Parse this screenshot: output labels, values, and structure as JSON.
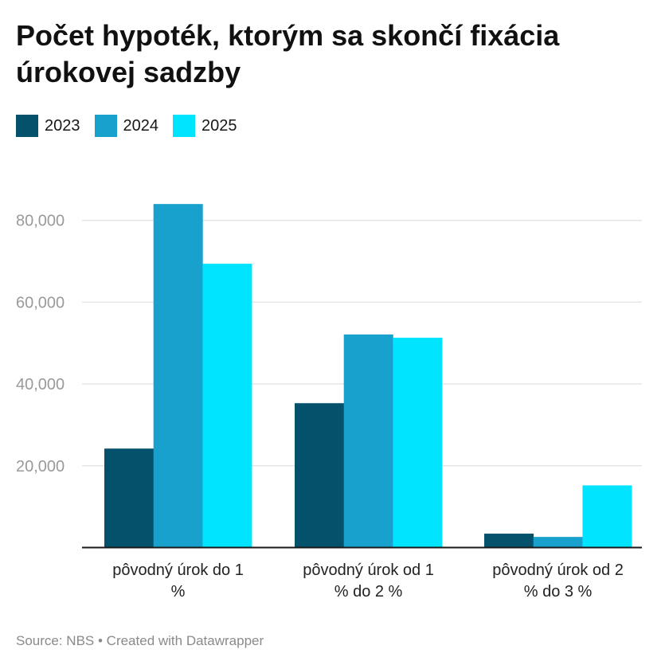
{
  "chart_data": {
    "type": "bar",
    "title": "Počet hypoték, ktorým sa skončí fixácia úrokovej sadzby",
    "categories": [
      [
        "pôvodný úrok do 1",
        "%"
      ],
      [
        "pôvodný úrok od 1",
        "% do 2 %"
      ],
      [
        "pôvodný úrok od 2",
        "% do 3 %"
      ]
    ],
    "series": [
      {
        "name": "2023",
        "color": "#03516b",
        "values": [
          24200,
          35300,
          3400
        ]
      },
      {
        "name": "2024",
        "color": "#18a1cd",
        "values": [
          84000,
          52100,
          2600
        ]
      },
      {
        "name": "2025",
        "color": "#00e4ff",
        "values": [
          69400,
          51300,
          15200
        ]
      }
    ],
    "ylim": [
      0,
      80000
    ],
    "yticks": [
      "20,000",
      "40,000",
      "60,000",
      "80,000"
    ],
    "ytick_values": [
      20000,
      40000,
      60000,
      80000
    ],
    "grid": true,
    "legend": "top-left",
    "xlabel": "",
    "ylabel": ""
  },
  "footer": "Source: NBS • Created with Datawrapper"
}
